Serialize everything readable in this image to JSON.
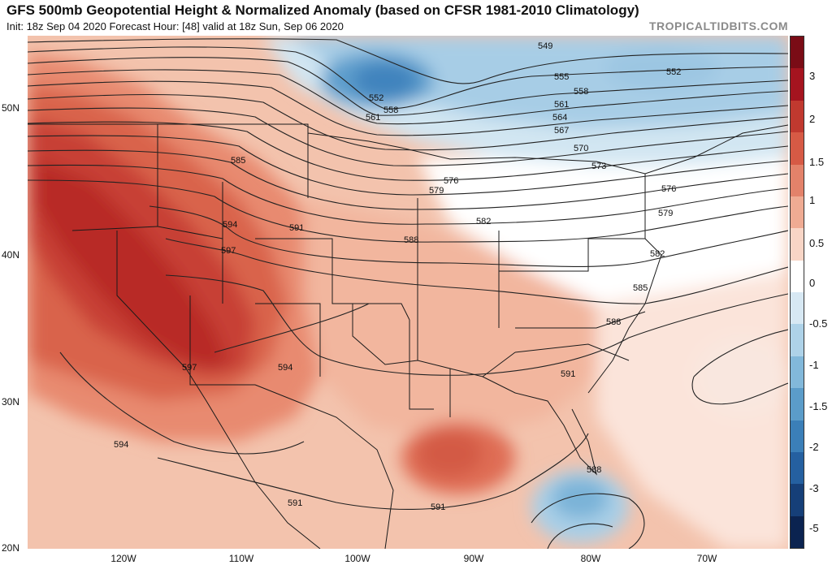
{
  "header": {
    "title": "GFS 500mb Geopotential Height & Normalized Anomaly (based on CFSR 1981-2010 Climatology)",
    "subtitle": "Init: 18z Sep 04 2020   Forecast Hour: [48]   valid at 18z Sun, Sep 06 2020",
    "brand": "TROPICALTIDBITS.COM"
  },
  "axes": {
    "lat_labels": [
      "50N",
      "40N",
      "30N",
      "20N"
    ],
    "lon_labels": [
      "120W",
      "110W",
      "100W",
      "90W",
      "80W",
      "70W"
    ]
  },
  "colorbar": {
    "labels": [
      "3",
      "2",
      "1.5",
      "1",
      "0.5",
      "0",
      "-0.5",
      "-1",
      "-1.5",
      "-2",
      "-3",
      "-5"
    ],
    "colors": [
      "#7a0c16",
      "#a5141f",
      "#c0392f",
      "#d65a45",
      "#e3826a",
      "#efab93",
      "#f8d5c6",
      "#ffffff",
      "#d7e8f3",
      "#aed2e8",
      "#82b8da",
      "#5b9cc9",
      "#3b7fb8",
      "#2560a0",
      "#163f78",
      "#0b2350"
    ]
  },
  "contours": {
    "labels": [
      "549",
      "552",
      "552",
      "555",
      "558",
      "558",
      "561",
      "561",
      "564",
      "567",
      "570",
      "573",
      "576",
      "576",
      "579",
      "579",
      "582",
      "582",
      "585",
      "585",
      "588",
      "588",
      "588",
      "591",
      "591",
      "591",
      "591",
      "594",
      "594",
      "594",
      "597",
      "597"
    ]
  }
}
